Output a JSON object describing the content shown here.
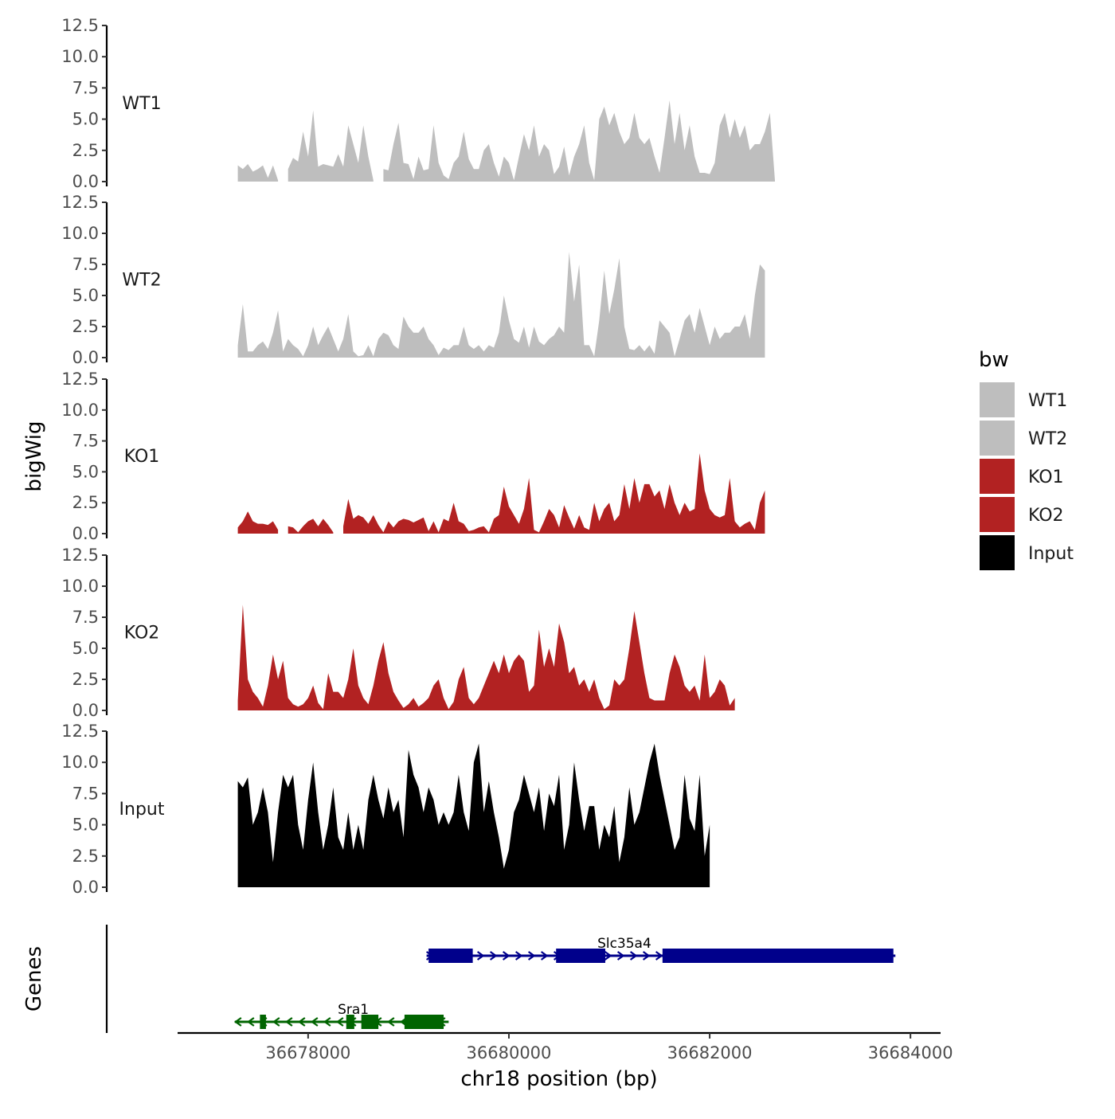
{
  "chart_data": {
    "type": "area",
    "xlabel": "chr18 position (bp)",
    "ylabel": "bigWig",
    "genes_label": "Genes",
    "x_range": [
      36676700,
      36684300
    ],
    "x_ticks": [
      36678000,
      36680000,
      36682000,
      36684000
    ],
    "x_tick_labels": [
      "36678000",
      "36680000",
      "36682000",
      "36684000"
    ],
    "ylim": [
      0,
      12.5
    ],
    "y_ticks": [
      0,
      2.5,
      5,
      7.5,
      10,
      12.5
    ],
    "y_tick_labels": [
      "0.0",
      "2.5",
      "5.0",
      "7.5",
      "10.0",
      "12.5"
    ],
    "signal_x_start": 36677300,
    "signal_x_step": 50,
    "legend": {
      "title": "bw",
      "position": "right",
      "entries": [
        {
          "label": "WT1",
          "color": "#bebebe"
        },
        {
          "label": "WT2",
          "color": "#bebebe"
        },
        {
          "label": "KO1",
          "color": "#b22222"
        },
        {
          "label": "KO2",
          "color": "#b22222"
        },
        {
          "label": "Input",
          "color": "#000000"
        }
      ]
    },
    "series": [
      {
        "name": "WT1",
        "color": "#bebebe",
        "values": [
          1.3,
          1.0,
          1.4,
          0.8,
          1.0,
          1.3,
          0.3,
          1.3,
          0.1,
          null,
          1.0,
          1.9,
          1.6,
          4.0,
          2.0,
          5.7,
          1.2,
          1.4,
          1.3,
          1.2,
          2.2,
          1.2,
          4.5,
          3.0,
          1.5,
          4.5,
          2.0,
          0.1,
          null,
          1.0,
          0.9,
          3.0,
          4.7,
          1.5,
          1.4,
          0.2,
          2.0,
          0.9,
          1.0,
          4.5,
          1.5,
          0.5,
          0.2,
          1.5,
          2.0,
          4.0,
          1.8,
          1.0,
          1.0,
          2.5,
          3.0,
          1.5,
          0.4,
          2.0,
          1.5,
          0.1,
          2.0,
          3.8,
          2.5,
          4.5,
          2.0,
          3.0,
          2.5,
          0.6,
          1.2,
          2.8,
          0.5,
          2.0,
          3.0,
          4.5,
          1.5,
          0.1,
          5.0,
          6.0,
          4.5,
          5.5,
          4.0,
          3.0,
          3.5,
          5.5,
          3.5,
          3.0,
          3.5,
          2.0,
          0.7,
          3.5,
          6.5,
          3.0,
          5.5,
          2.5,
          4.5,
          2.0,
          0.7,
          0.7,
          0.6,
          1.5,
          4.5,
          5.5,
          3.5,
          5.0,
          3.5,
          4.5,
          2.5,
          3.0,
          3.0,
          4.0,
          5.5,
          0.1
        ]
      },
      {
        "name": "WT2",
        "color": "#bebebe",
        "values": [
          1.0,
          4.3,
          0.5,
          0.5,
          1.0,
          1.3,
          0.7,
          2.0,
          3.8,
          0.5,
          1.5,
          1.0,
          0.7,
          0.1,
          1.0,
          2.5,
          1.0,
          1.8,
          2.5,
          1.5,
          0.5,
          1.5,
          3.5,
          0.5,
          0.1,
          0.2,
          1.0,
          0.1,
          1.5,
          2.0,
          1.8,
          1.0,
          0.7,
          3.3,
          2.5,
          2.0,
          2.0,
          2.5,
          1.5,
          1.0,
          0.2,
          0.8,
          0.6,
          1.0,
          1.0,
          2.5,
          1.0,
          0.7,
          1.0,
          0.5,
          1.0,
          0.8,
          2.0,
          5.0,
          3.0,
          1.5,
          1.2,
          2.5,
          0.8,
          2.5,
          1.3,
          1.0,
          1.5,
          1.8,
          2.5,
          2.0,
          8.5,
          4.5,
          7.5,
          1.0,
          1.0,
          0.1,
          3.0,
          7.0,
          3.5,
          5.5,
          8.0,
          2.5,
          0.7,
          0.6,
          1.0,
          0.5,
          1.0,
          0.3,
          3.0,
          2.5,
          2.0,
          0.1,
          1.5,
          3.0,
          3.5,
          2.0,
          4.0,
          2.5,
          1.0,
          2.5,
          1.5,
          2.0,
          2.0,
          2.5,
          2.5,
          3.5,
          1.5,
          5.0,
          7.5,
          7.0
        ]
      },
      {
        "name": "KO1",
        "color": "#b22222",
        "values": [
          0.5,
          1.0,
          1.8,
          1.0,
          0.8,
          0.8,
          0.7,
          1.0,
          0.3,
          null,
          0.6,
          0.5,
          0.1,
          0.6,
          1.0,
          1.2,
          0.6,
          1.2,
          0.7,
          0.1,
          null,
          0.6,
          2.8,
          1.2,
          1.5,
          1.3,
          0.8,
          1.5,
          0.7,
          0.1,
          1.0,
          0.5,
          1.0,
          1.2,
          1.1,
          0.9,
          1.1,
          1.3,
          0.2,
          1.0,
          0.1,
          1.2,
          1.0,
          2.5,
          1.0,
          0.8,
          0.2,
          0.3,
          0.5,
          0.6,
          0.1,
          1.2,
          1.5,
          3.8,
          2.2,
          1.5,
          0.8,
          2.0,
          4.5,
          0.3,
          0.1,
          1.0,
          2.0,
          1.5,
          0.5,
          2.3,
          1.3,
          0.4,
          1.5,
          0.5,
          0.3,
          2.5,
          1.0,
          2.0,
          2.5,
          1.0,
          1.5,
          4.0,
          2.0,
          4.5,
          2.5,
          4.0,
          4.0,
          3.0,
          3.5,
          2.0,
          4.0,
          2.5,
          1.5,
          2.5,
          1.8,
          2.0,
          6.5,
          3.5,
          2.0,
          1.5,
          1.3,
          1.5,
          4.5,
          1.0,
          0.5,
          0.8,
          1.0,
          0.3,
          2.5,
          3.5
        ]
      },
      {
        "name": "KO2",
        "color": "#b22222",
        "values": [
          0.8,
          8.5,
          2.5,
          1.5,
          1.0,
          0.3,
          2.0,
          4.5,
          2.5,
          4.0,
          1.0,
          0.5,
          0.3,
          0.5,
          1.0,
          2.0,
          0.6,
          0.1,
          3.0,
          1.5,
          1.5,
          1.0,
          2.5,
          5.0,
          2.0,
          1.0,
          0.5,
          2.0,
          4.0,
          5.5,
          3.0,
          1.5,
          0.8,
          0.2,
          0.5,
          1.0,
          0.3,
          0.6,
          1.0,
          2.0,
          2.5,
          1.0,
          0.1,
          0.7,
          2.5,
          3.5,
          1.0,
          0.5,
          1.0,
          2.0,
          3.0,
          4.0,
          3.0,
          4.5,
          3.0,
          4.0,
          4.5,
          4.0,
          1.5,
          2.0,
          6.5,
          3.5,
          5.0,
          3.5,
          7.0,
          5.5,
          3.0,
          3.5,
          2.0,
          2.5,
          1.5,
          2.5,
          1.0,
          0.1,
          0.4,
          2.5,
          2.0,
          2.5,
          5.0,
          8.0,
          5.5,
          3.0,
          1.0,
          0.8,
          0.8,
          0.8,
          3.0,
          4.5,
          3.5,
          2.0,
          1.5,
          2.0,
          0.8,
          4.5,
          1.0,
          1.5,
          2.5,
          2.0,
          0.4,
          1.0
        ]
      },
      {
        "name": "Input",
        "color": "#000000",
        "values": [
          8.5,
          8.0,
          8.8,
          5.0,
          6.0,
          8.0,
          6.0,
          2.0,
          6.0,
          9.0,
          8.0,
          9.0,
          5.0,
          3.0,
          7.0,
          10.0,
          6.0,
          3.0,
          5.0,
          8.0,
          4.0,
          3.0,
          6.0,
          3.0,
          5.0,
          3.0,
          7.0,
          9.0,
          7.0,
          5.5,
          8.0,
          6.0,
          7.0,
          4.0,
          11.0,
          9.0,
          8.0,
          6.0,
          8.0,
          7.0,
          5.0,
          6.0,
          5.0,
          6.0,
          9.0,
          6.0,
          4.5,
          10.0,
          11.5,
          6.0,
          8.5,
          6.0,
          4.0,
          1.5,
          3.0,
          6.0,
          7.0,
          9.0,
          7.5,
          6.0,
          8.0,
          4.5,
          7.5,
          6.5,
          9.0,
          3.0,
          5.0,
          10.0,
          7.0,
          4.5,
          6.5,
          6.5,
          3.0,
          5.0,
          4.0,
          6.5,
          2.0,
          4.0,
          8.0,
          5.0,
          6.0,
          8.0,
          10.0,
          11.5,
          9.0,
          7.0,
          5.0,
          3.0,
          4.0,
          9.0,
          5.5,
          4.5,
          9.0,
          2.5,
          5.0
        ]
      }
    ],
    "genes": [
      {
        "name": "Sra1",
        "color": "#006400",
        "strand": "-",
        "start": 36677270,
        "end": 36679400,
        "exons": [
          [
            36677520,
            36677580
          ],
          [
            36678380,
            36678460
          ],
          [
            36678530,
            36678700
          ],
          [
            36678960,
            36679350
          ]
        ]
      },
      {
        "name": "Slc35a4",
        "color": "#00008b",
        "strand": "+",
        "start": 36679180,
        "end": 36683850,
        "exons": [
          [
            36679200,
            36679640
          ],
          [
            36680470,
            36680960
          ],
          [
            36681530,
            36683830
          ]
        ]
      }
    ]
  }
}
